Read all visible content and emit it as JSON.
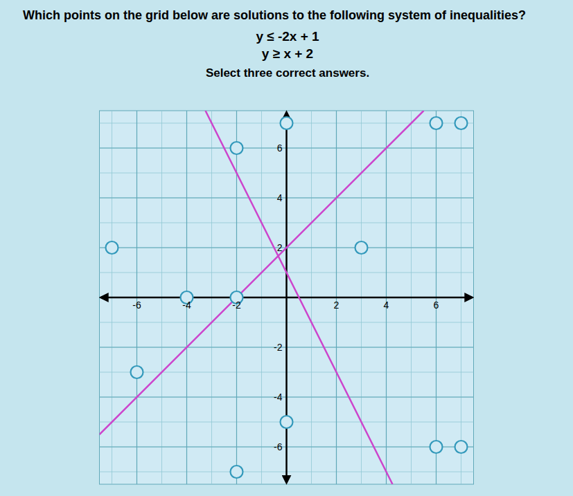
{
  "chart_data": {
    "type": "scatter",
    "title": "Which points on the grid below are solutions to the following system of inequalities?",
    "annotations": [
      "y ≤ -2x + 1",
      "y ≥ x + 2"
    ],
    "subtitle": "Select three correct answers.",
    "xlim": [
      -7.5,
      7.5
    ],
    "ylim": [
      -7.5,
      7.5
    ],
    "xticks": [
      -6,
      -4,
      -2,
      2,
      4,
      6
    ],
    "yticks": [
      -6,
      -4,
      -2,
      2,
      4,
      6
    ],
    "grid": true,
    "series": [
      {
        "type": "line",
        "color": "#cc44cc",
        "x": [
          -3.25,
          4.25
        ],
        "values": [
          7.5,
          -7.5
        ]
      },
      {
        "type": "line",
        "color": "#cc44cc",
        "x": [
          -7.5,
          5.5
        ],
        "values": [
          -5.5,
          7.5
        ]
      },
      {
        "type": "scatter",
        "color": "#3399bb",
        "marker": "circle",
        "x": [
          -2,
          0,
          6,
          7,
          -7,
          -4,
          -2,
          3,
          -6,
          0,
          -2,
          6,
          7
        ],
        "values": [
          6,
          7,
          7,
          7,
          2,
          0,
          0,
          2,
          -3,
          -5,
          -7,
          -6,
          -6
        ]
      }
    ]
  }
}
